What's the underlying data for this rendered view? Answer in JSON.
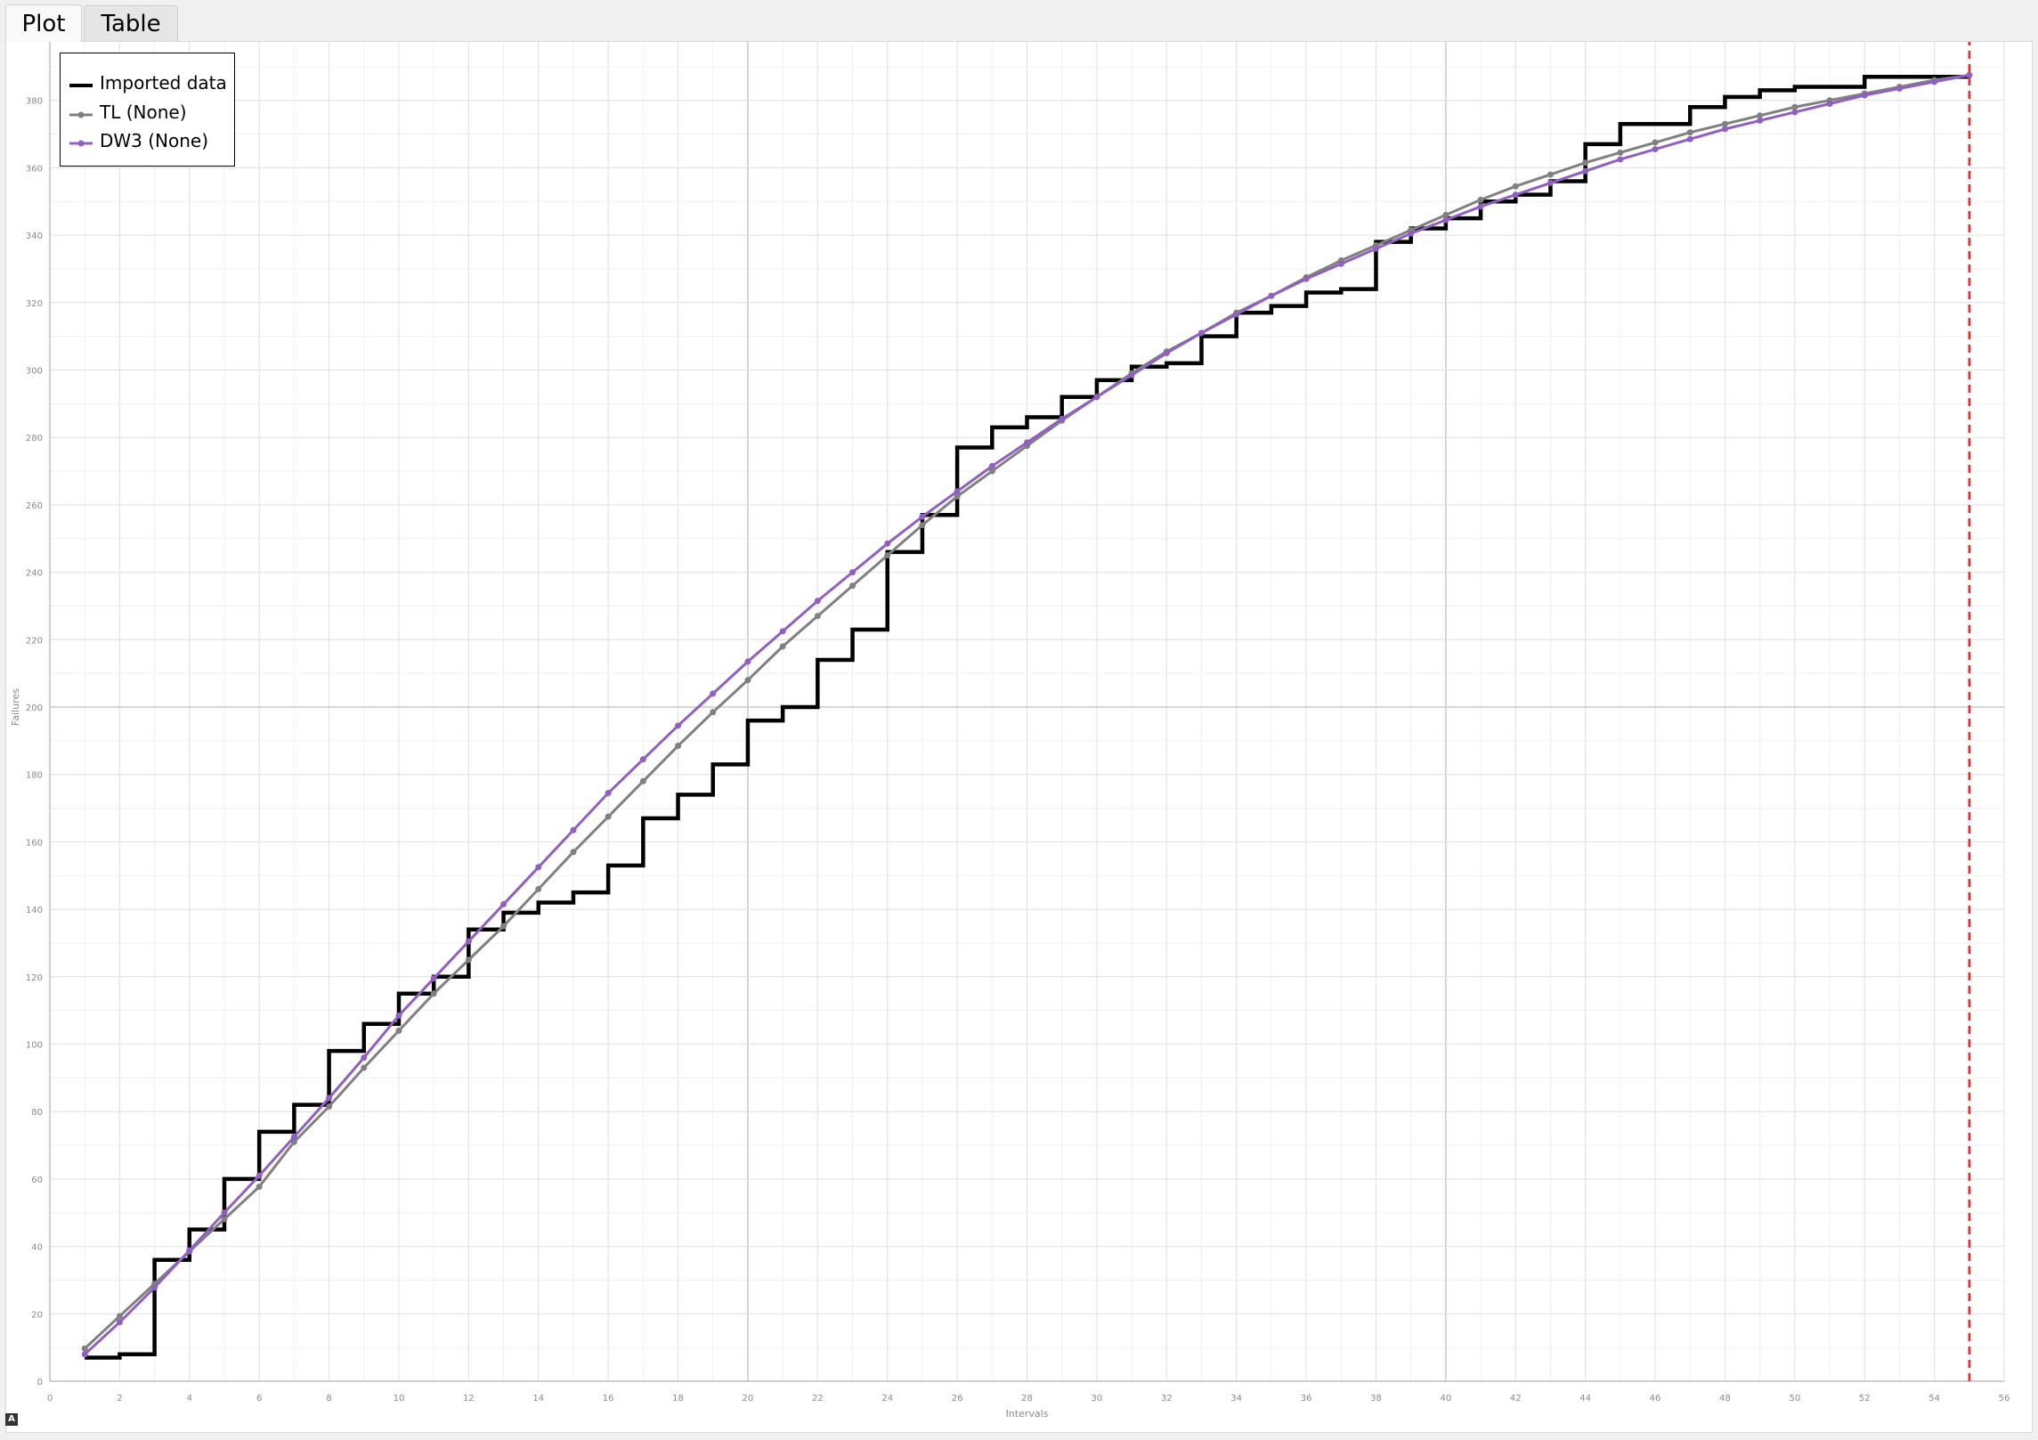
{
  "tabs": [
    {
      "label": "Plot",
      "active": true
    },
    {
      "label": "Table",
      "active": false
    }
  ],
  "chart_data": {
    "type": "line",
    "title": "",
    "xlabel": "Intervals",
    "ylabel": "Failures",
    "xlim": [
      0,
      56
    ],
    "ylim": [
      0,
      400
    ],
    "xticks": [
      0,
      2,
      4,
      6,
      8,
      10,
      12,
      14,
      16,
      18,
      20,
      22,
      24,
      26,
      28,
      30,
      32,
      34,
      36,
      38,
      40,
      42,
      44,
      46,
      48,
      50,
      52,
      54,
      56
    ],
    "yticks": [
      0,
      20,
      40,
      60,
      80,
      100,
      120,
      140,
      160,
      180,
      200,
      220,
      240,
      260,
      280,
      300,
      320,
      340,
      360,
      380
    ],
    "grid": true,
    "legend_position": "top-left",
    "vertical_marker": {
      "x": 55,
      "color": "#e03030",
      "style": "dashed"
    },
    "series": [
      {
        "name": "Imported data",
        "kind": "step",
        "color": "#000000",
        "x": [
          1,
          2,
          3,
          4,
          5,
          6,
          7,
          8,
          9,
          10,
          11,
          12,
          13,
          14,
          15,
          16,
          17,
          18,
          19,
          20,
          21,
          22,
          23,
          24,
          25,
          26,
          27,
          28,
          29,
          30,
          31,
          32,
          33,
          34,
          35,
          36,
          37,
          38,
          39,
          40,
          41,
          42,
          43,
          44,
          45,
          46,
          47,
          48,
          49,
          50,
          51,
          52,
          53,
          54,
          55
        ],
        "y": [
          7,
          8,
          36,
          45,
          60,
          74,
          82,
          98,
          106,
          115,
          120,
          134,
          139,
          142,
          145,
          153,
          167,
          174,
          183,
          196,
          200,
          214,
          223,
          246,
          257,
          277,
          283,
          286,
          292,
          297,
          301,
          302,
          310,
          317,
          319,
          323,
          324,
          338,
          342,
          345,
          350,
          352,
          356,
          367,
          373,
          373,
          378,
          381,
          383,
          384,
          384,
          387,
          387,
          387,
          387
        ]
      },
      {
        "name": "TL (None)",
        "kind": "line-markers",
        "color": "#808080",
        "x": [
          1,
          2,
          3,
          4,
          5,
          6,
          7,
          8,
          9,
          10,
          11,
          12,
          13,
          14,
          15,
          16,
          17,
          18,
          19,
          20,
          21,
          22,
          23,
          24,
          25,
          26,
          27,
          28,
          29,
          30,
          31,
          32,
          33,
          34,
          35,
          36,
          37,
          38,
          39,
          40,
          41,
          42,
          43,
          44,
          45,
          46,
          47,
          48,
          49,
          50,
          51,
          52,
          53,
          54,
          55
        ],
        "y": [
          9.7,
          19.3,
          28.9,
          38.5,
          48.1,
          57.7,
          71,
          81.5,
          93,
          104,
          115,
          125,
          135,
          146,
          157,
          167.5,
          178,
          188.5,
          198.5,
          208,
          218,
          227,
          236,
          245,
          254,
          262.5,
          270,
          277.5,
          285,
          292,
          299,
          305.5,
          311,
          317,
          322,
          327.5,
          332.5,
          337,
          341.5,
          346,
          350.5,
          354.5,
          358,
          361.5,
          364.5,
          367.5,
          370.5,
          373,
          375.5,
          378,
          380,
          382,
          384,
          386,
          387.5
        ]
      },
      {
        "name": "DW3 (None)",
        "kind": "line-markers",
        "color": "#9060c0",
        "x": [
          1,
          2,
          3,
          4,
          5,
          6,
          7,
          8,
          9,
          10,
          11,
          12,
          13,
          14,
          15,
          16,
          17,
          18,
          19,
          20,
          21,
          22,
          23,
          24,
          25,
          26,
          27,
          28,
          29,
          30,
          31,
          32,
          33,
          34,
          35,
          36,
          37,
          38,
          39,
          40,
          41,
          42,
          43,
          44,
          45,
          46,
          47,
          48,
          49,
          50,
          51,
          52,
          53,
          54,
          55
        ],
        "y": [
          8,
          17.5,
          27.8,
          38.8,
          50,
          61,
          72.5,
          84,
          96,
          108.5,
          119.5,
          130.5,
          141.5,
          152.5,
          163.5,
          174.5,
          184.5,
          194.5,
          204,
          213.5,
          222.5,
          231.5,
          240,
          248.5,
          256.5,
          264,
          271.5,
          278.5,
          285.5,
          292,
          298.5,
          305,
          311,
          316.5,
          322,
          327,
          331.5,
          336,
          340.5,
          344.5,
          348.5,
          352,
          355.5,
          359,
          362.5,
          365.5,
          368.5,
          371.5,
          374,
          376.5,
          379,
          381.5,
          383.5,
          385.5,
          387.5
        ]
      }
    ]
  }
}
